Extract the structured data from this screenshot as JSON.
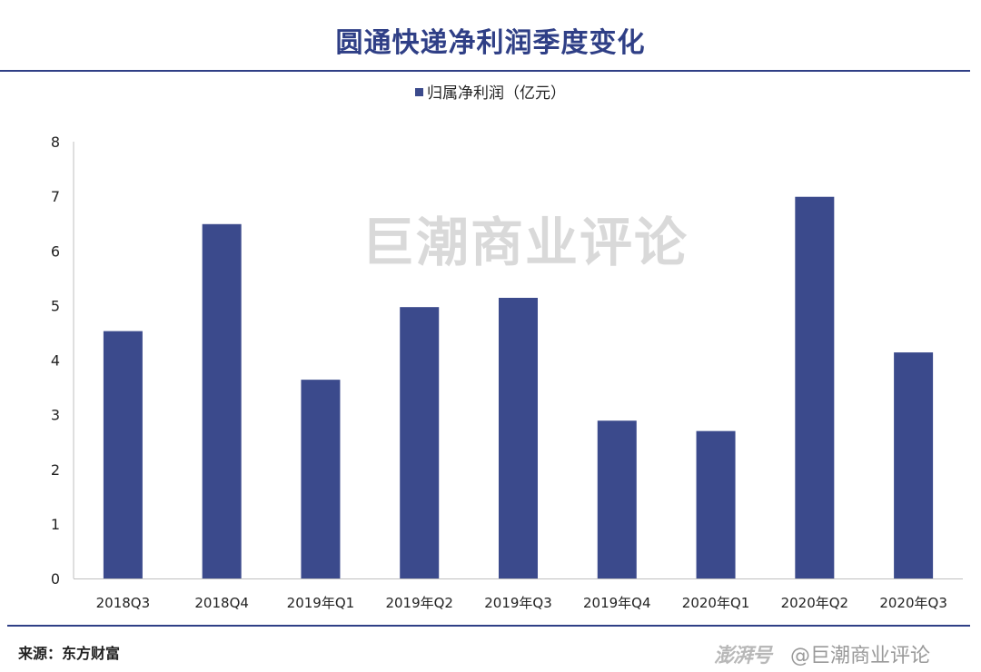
{
  "chart_data": {
    "type": "bar",
    "title": "圆通快递净利润季度变化",
    "legend": [
      "归属净利润（亿元）"
    ],
    "categories": [
      "2018Q3",
      "2018Q4",
      "2019年Q1",
      "2019年Q2",
      "2019年Q3",
      "2019年Q4",
      "2020年Q1",
      "2020年Q2",
      "2020年Q3"
    ],
    "series": [
      {
        "name": "归属净利润（亿元）",
        "values": [
          4.53,
          6.49,
          3.64,
          4.97,
          5.14,
          2.89,
          2.7,
          6.99,
          4.14
        ]
      }
    ],
    "yticks": [
      "0",
      "1",
      "2",
      "3",
      "4",
      "5",
      "6",
      "7",
      "8"
    ],
    "ylim": [
      0,
      8
    ],
    "grid": false,
    "legend_position": "top-center",
    "bar_color": "#3b4a8c"
  },
  "watermark": "巨潮商业评论",
  "source": "来源：东方财富",
  "footer": {
    "brand": "澎湃号",
    "credit": "@巨潮商业评论"
  }
}
